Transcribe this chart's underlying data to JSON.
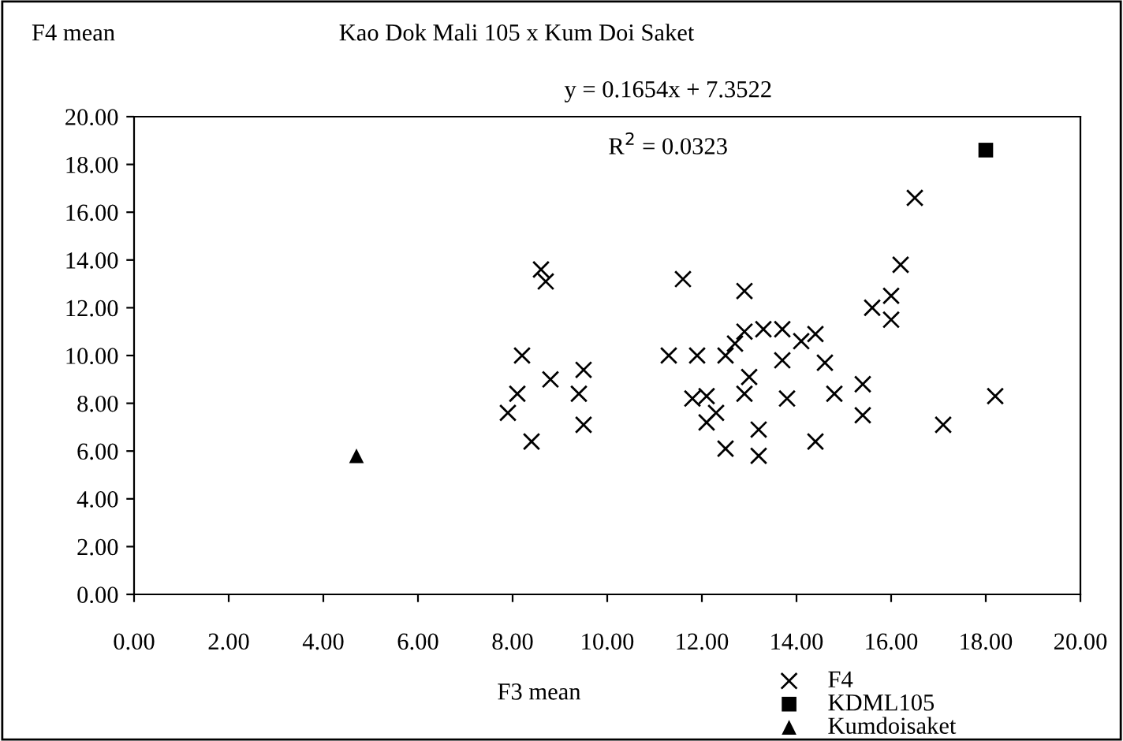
{
  "chart_data": {
    "type": "scatter",
    "title": "Kao Dok Mali 105 x Kum Doi Saket",
    "xlabel": "F3 mean",
    "ylabel": "F4 mean",
    "annotations": [
      "y = 0.1654x + 7.3522",
      "R$^{2}$ = 0.0323"
    ],
    "xlim": [
      0,
      20
    ],
    "ylim": [
      0,
      20
    ],
    "xticks": [
      {
        "value": 0,
        "label": "0.00"
      },
      {
        "value": 2,
        "label": "2.00"
      },
      {
        "value": 4,
        "label": "4.00"
      },
      {
        "value": 6,
        "label": "6.00"
      },
      {
        "value": 8,
        "label": "8.00"
      },
      {
        "value": 10,
        "label": "10.00"
      },
      {
        "value": 12,
        "label": "12.00"
      },
      {
        "value": 14,
        "label": "14.00"
      },
      {
        "value": 16,
        "label": "16.00"
      },
      {
        "value": 18,
        "label": "18.00"
      },
      {
        "value": 20,
        "label": "20.00"
      }
    ],
    "yticks": [
      {
        "value": 0,
        "label": "0.00"
      },
      {
        "value": 2,
        "label": "2.00"
      },
      {
        "value": 4,
        "label": "4.00"
      },
      {
        "value": 6,
        "label": "6.00"
      },
      {
        "value": 8,
        "label": "8.00"
      },
      {
        "value": 10,
        "label": "10.00"
      },
      {
        "value": 12,
        "label": "12.00"
      },
      {
        "value": 14,
        "label": "14.00"
      },
      {
        "value": 16,
        "label": "16.00"
      },
      {
        "value": 18,
        "label": "18.00"
      },
      {
        "value": 20,
        "label": "20.00"
      }
    ],
    "grid": false,
    "legend": "bottom right",
    "series": [
      {
        "name": "F4",
        "color": "#000000",
        "marker": "cross",
        "x": [
          16.5,
          16.2,
          16.0,
          15.6,
          16.0,
          15.4,
          15.4,
          17.1,
          18.2,
          14.8,
          14.6,
          14.4,
          14.1,
          14.4,
          13.8,
          13.7,
          13.7,
          13.3,
          12.9,
          12.7,
          12.5,
          12.9,
          13.0,
          12.9,
          13.2,
          13.2,
          12.5,
          12.1,
          12.3,
          12.1,
          11.8,
          11.9,
          11.3,
          11.6,
          8.6,
          8.7,
          8.2,
          8.8,
          9.5,
          8.1,
          7.9,
          8.4,
          9.4,
          9.5
        ],
        "values": [
          16.6,
          13.8,
          12.5,
          12.0,
          11.5,
          8.8,
          7.5,
          7.1,
          8.3,
          8.4,
          9.7,
          10.9,
          10.6,
          6.4,
          8.2,
          9.8,
          11.1,
          11.1,
          11.0,
          10.5,
          10.0,
          12.7,
          9.1,
          8.4,
          6.9,
          5.8,
          6.1,
          7.2,
          7.6,
          8.3,
          8.2,
          10.0,
          10.0,
          13.2,
          13.6,
          13.1,
          10.0,
          9.0,
          9.4,
          8.4,
          7.6,
          6.4,
          8.4,
          7.1
        ]
      },
      {
        "name": "KDML105",
        "color": "#000000",
        "marker": "square",
        "x": [
          18.0
        ],
        "values": [
          18.6
        ]
      },
      {
        "name": "Kumdoisaket",
        "color": "#000000",
        "marker": "triangle",
        "x": [
          4.7
        ],
        "values": [
          5.8
        ]
      }
    ]
  }
}
